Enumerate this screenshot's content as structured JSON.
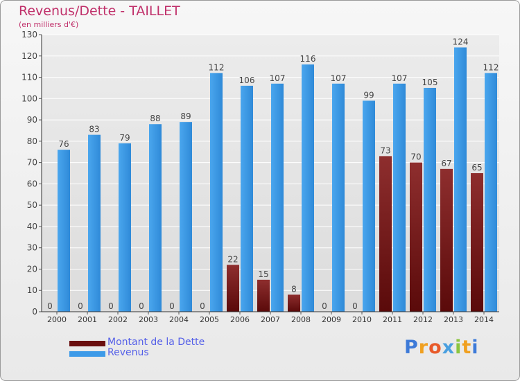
{
  "header": {
    "title": "Revenus/Dette - TAILLET",
    "subtitle": "(en milliers d'€)"
  },
  "legend": {
    "debt_label": "Montant de la Dette",
    "revenue_label": "Revenus"
  },
  "logo": {
    "text": "Proxiti"
  },
  "colors": {
    "debt": "#7a1d1d",
    "revenue": "#3d9ae8",
    "title": "#c0306a",
    "legend_text": "#5560e8"
  },
  "chart_data": {
    "type": "bar",
    "title": "Revenus/Dette - TAILLET",
    "subtitle": "(en milliers d'€)",
    "categories": [
      "2000",
      "2001",
      "2002",
      "2003",
      "2004",
      "2005",
      "2006",
      "2007",
      "2008",
      "2009",
      "2010",
      "2011",
      "2012",
      "2013",
      "2014"
    ],
    "series": [
      {
        "name": "Montant de la Dette",
        "values": [
          0,
          0,
          0,
          0,
          0,
          0,
          22,
          15,
          8,
          0,
          0,
          73,
          70,
          67,
          65
        ]
      },
      {
        "name": "Revenus",
        "values": [
          76,
          83,
          79,
          88,
          89,
          112,
          106,
          107,
          116,
          107,
          99,
          107,
          105,
          124,
          112
        ]
      }
    ],
    "ylim": [
      0,
      130
    ],
    "yticks": [
      0,
      10,
      20,
      30,
      40,
      50,
      60,
      70,
      80,
      90,
      100,
      110,
      120,
      130
    ],
    "grid": true,
    "legend_position": "bottom-left"
  }
}
